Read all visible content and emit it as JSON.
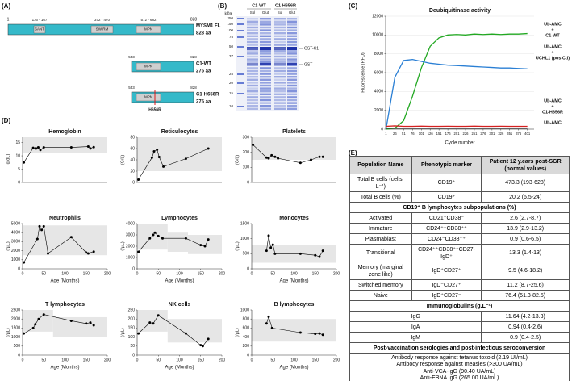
{
  "panel_labels": [
    "(A)",
    "(B)",
    "(C)",
    "(D)",
    "(E)"
  ],
  "diagram": {
    "full": {
      "start": "1",
      "end": "828",
      "name": "MYSM1 FL",
      "length": "828 aa",
      "domains": [
        {
          "name": "SANT",
          "range": "116 - 167"
        },
        {
          "name": "SWIRM",
          "range": "372 - 470"
        },
        {
          "name": "MPN",
          "range": "572 - 682"
        }
      ]
    },
    "constructs": [
      {
        "start": "553",
        "end": "828",
        "domain": "MPN",
        "name": "C1-WT",
        "length": "275 aa",
        "color": "#1a9a1a"
      },
      {
        "start": "553",
        "end": "828",
        "domain": "MPN",
        "name": "C1-H656R",
        "length": "275 aa",
        "color": "#e01818",
        "mutation": "H656R"
      }
    ]
  },
  "gel": {
    "unit": "kDa",
    "markers": [
      250,
      150,
      100,
      75,
      50,
      37,
      25,
      20,
      15,
      10
    ],
    "groups": [
      {
        "name": "C1-WT",
        "color": "#1a9a1a",
        "lanes": [
          "Sol",
          "Glut"
        ]
      },
      {
        "name": "C1-H656R",
        "color": "#e01818",
        "lanes": [
          "Sol",
          "Glut"
        ]
      }
    ],
    "bands": [
      "GST-C1",
      "GST"
    ]
  },
  "chart_data": [
    {
      "type": "line",
      "title": "Deubiquitinase activity",
      "xlabel": "Cycle number",
      "ylabel": "Fluorescence (RFU)",
      "annotation": {
        "substrate": "Ub-AMC",
        "plus": "+"
      },
      "x": [
        1,
        26,
        51,
        76,
        101,
        126,
        151,
        176,
        201,
        226,
        251,
        276,
        301,
        326,
        351,
        376,
        401
      ],
      "xlim": [
        0,
        420
      ],
      "xticks": [
        1,
        26,
        51,
        76,
        101,
        126,
        151,
        176,
        201,
        226,
        251,
        276,
        301,
        326,
        351,
        376,
        401
      ],
      "ylim": [
        0,
        12000
      ],
      "yticks": [
        0,
        2000,
        4000,
        6000,
        8000,
        10000,
        12000
      ],
      "grid": true,
      "series": [
        {
          "name": "C1-WT",
          "color": "#22a822",
          "values": [
            0,
            100,
            900,
            3500,
            6500,
            8800,
            9700,
            10000,
            10050,
            10000,
            10100,
            10050,
            10100,
            10050,
            10100,
            10100,
            10150
          ]
        },
        {
          "name": "UCHL1 (pos Ctl)",
          "color": "#2a7fd4",
          "values": [
            0,
            5500,
            7300,
            7400,
            7200,
            7000,
            6900,
            6800,
            6750,
            6700,
            6650,
            6600,
            6550,
            6500,
            6500,
            6450,
            6400
          ]
        },
        {
          "name": "C1-H656R",
          "color": "#d42020",
          "values": [
            300,
            350,
            300,
            300,
            320,
            300,
            300,
            310,
            300,
            300,
            320,
            300,
            300,
            310,
            300,
            300,
            300
          ]
        },
        {
          "name": "Ub-AMC",
          "color": "#333333",
          "values": [
            100,
            100,
            100,
            100,
            100,
            100,
            100,
            100,
            100,
            100,
            100,
            100,
            100,
            100,
            100,
            100,
            100
          ]
        }
      ]
    },
    {
      "type": "line",
      "title": "Hemoglobin",
      "ylabel": "(g/dL)",
      "color": "#000000",
      "markers": true,
      "x": [
        3,
        25,
        32,
        37,
        42,
        50,
        115,
        155,
        160,
        168
      ],
      "values": [
        7.5,
        13,
        12.8,
        13.2,
        12.2,
        13.2,
        13.2,
        13.5,
        12.8,
        13.3
      ],
      "xlim": [
        0,
        200
      ],
      "ylim": [
        0,
        17
      ],
      "yticks": [
        0,
        5,
        10,
        15
      ],
      "ref_ranges": [
        {
          "x": [
            0,
            200
          ],
          "y": [
            11,
            17
          ]
        }
      ]
    },
    {
      "type": "line",
      "title": "Reticulocytes",
      "ylabel": "(G/L)",
      "color": "#000000",
      "markers": true,
      "x": [
        3,
        35,
        40,
        47,
        52,
        62,
        115,
        168
      ],
      "values": [
        5,
        44,
        55,
        58,
        45,
        28,
        42,
        60
      ],
      "xlim": [
        0,
        200
      ],
      "ylim": [
        0,
        80
      ],
      "yticks": [
        0,
        20,
        40,
        60,
        80
      ],
      "ref_ranges": [
        {
          "x": [
            0,
            200
          ],
          "y": [
            20,
            80
          ]
        }
      ]
    },
    {
      "type": "line",
      "title": "Platelets",
      "ylabel": "(G/L)",
      "color": "#000000",
      "markers": true,
      "x": [
        3,
        35,
        40,
        47,
        55,
        62,
        115,
        140,
        160,
        168
      ],
      "values": [
        250,
        165,
        160,
        180,
        170,
        160,
        130,
        150,
        170,
        170
      ],
      "xlim": [
        0,
        200
      ],
      "ylim": [
        0,
        300
      ],
      "yticks": [
        0,
        100,
        200,
        300
      ],
      "ref_ranges": [
        {
          "x": [
            0,
            200
          ],
          "y": [
            150,
            300
          ]
        }
      ]
    },
    {
      "type": "line",
      "title": "Neutrophils",
      "ylabel": "(/µL)",
      "xlabel": "Age (Months)",
      "color": "#000000",
      "markers": true,
      "x": [
        3,
        35,
        40,
        45,
        50,
        60,
        115,
        150,
        155,
        168
      ],
      "values": [
        700,
        3300,
        4700,
        4300,
        4700,
        1700,
        3500,
        1800,
        1700,
        1900
      ],
      "xlim": [
        0,
        200
      ],
      "xticks": [
        0,
        50,
        100,
        150,
        200
      ],
      "ylim": [
        0,
        5000
      ],
      "yticks": [
        0,
        1000,
        2000,
        3000,
        4000,
        5000
      ],
      "ref_ranges": [
        {
          "x": [
            0,
            200
          ],
          "y": [
            1500,
            4800
          ]
        }
      ]
    },
    {
      "type": "line",
      "title": "Lymphocytes",
      "ylabel": "(/µL)",
      "xlabel": "Age (Months)",
      "color": "#000000",
      "markers": true,
      "x": [
        3,
        30,
        38,
        42,
        50,
        60,
        115,
        150,
        160,
        168
      ],
      "values": [
        1500,
        2700,
        3000,
        3200,
        2900,
        2700,
        2700,
        2100,
        2000,
        2600
      ],
      "xlim": [
        0,
        200
      ],
      "xticks": [
        0,
        50,
        100,
        150,
        200
      ],
      "ylim": [
        0,
        4000
      ],
      "yticks": [
        0,
        1000,
        2000,
        3000,
        4000
      ],
      "ref_ranges": [
        {
          "x": [
            0,
            72
          ],
          "y": [
            1700,
            4000
          ]
        },
        {
          "x": [
            72,
            120
          ],
          "y": [
            1500,
            3200
          ]
        },
        {
          "x": [
            120,
            200
          ],
          "y": [
            1300,
            3000
          ]
        }
      ]
    },
    {
      "type": "line",
      "title": "Monocytes",
      "ylabel": "(/µL)",
      "xlabel": "Age (Months)",
      "color": "#000000",
      "markers": true,
      "x": [
        35,
        40,
        45,
        50,
        55,
        115,
        150,
        160,
        168
      ],
      "values": [
        600,
        1100,
        700,
        800,
        500,
        500,
        450,
        400,
        600
      ],
      "xlim": [
        0,
        200
      ],
      "xticks": [
        0,
        50,
        100,
        150,
        200
      ],
      "ylim": [
        0,
        1500
      ],
      "yticks": [
        0,
        500,
        1000,
        1500
      ],
      "ref_ranges": [
        {
          "x": [
            0,
            200
          ],
          "y": [
            200,
            800
          ]
        }
      ]
    },
    {
      "type": "line",
      "title": "T lymphocytes",
      "ylabel": "(/µL)",
      "xlabel": "Age (Months)",
      "color": "#000000",
      "markers": true,
      "x": [
        3,
        25,
        30,
        38,
        50,
        115,
        150,
        160,
        168
      ],
      "values": [
        1200,
        1500,
        1700,
        2000,
        2250,
        1900,
        1750,
        1800,
        1650
      ],
      "xlim": [
        0,
        200
      ],
      "xticks": [
        0,
        50,
        100,
        150,
        200
      ],
      "ylim": [
        0,
        2500
      ],
      "yticks": [
        0,
        500,
        1000,
        1500,
        2000,
        2500
      ],
      "ref_ranges": [
        {
          "x": [
            0,
            72
          ],
          "y": [
            1300,
            2500
          ]
        },
        {
          "x": [
            72,
            200
          ],
          "y": [
            1000,
            2100
          ]
        }
      ]
    },
    {
      "type": "line",
      "title": "NK cells",
      "ylabel": "(/µL)",
      "xlabel": "Age (Months)",
      "color": "#000000",
      "markers": true,
      "x": [
        3,
        30,
        38,
        50,
        115,
        150,
        155,
        168
      ],
      "values": [
        120,
        180,
        175,
        220,
        120,
        55,
        50,
        90
      ],
      "xlim": [
        0,
        200
      ],
      "xticks": [
        0,
        50,
        100,
        150,
        200
      ],
      "ylim": [
        0,
        250
      ],
      "yticks": [
        0,
        50,
        100,
        150,
        200,
        250
      ],
      "ref_ranges": [
        {
          "x": [
            0,
            72
          ],
          "y": [
            130,
            250
          ]
        },
        {
          "x": [
            72,
            200
          ],
          "y": [
            70,
            200
          ]
        }
      ]
    },
    {
      "type": "line",
      "title": "B lymphocytes",
      "ylabel": "(/µL)",
      "xlabel": "Age (Months)",
      "color": "#000000",
      "markers": true,
      "x": [
        35,
        40,
        48,
        115,
        150,
        160,
        168
      ],
      "values": [
        700,
        850,
        600,
        500,
        470,
        480,
        450
      ],
      "xlim": [
        0,
        200
      ],
      "xticks": [
        0,
        50,
        100,
        150,
        200
      ],
      "ylim": [
        0,
        1000
      ],
      "yticks": [
        0,
        200,
        400,
        600,
        800,
        1000
      ],
      "ref_ranges": [
        {
          "x": [
            0,
            200
          ],
          "y": [
            300,
            800
          ]
        }
      ]
    }
  ],
  "table": {
    "header": [
      "Population Name",
      "Phenotypic marker",
      "Patient 12 y.ears post-SGR (normal values)"
    ],
    "sections": [
      {
        "rows": [
          [
            "Total B cells (cells. L⁻¹)",
            "CD19⁺",
            "473.3 (193-628)"
          ],
          [
            "Total B cells (%)",
            "CD19⁺",
            "20.2 (6.5-24)"
          ]
        ]
      },
      {
        "title": "CD19⁺ B lymphocytes subpopulations (%)",
        "rows": [
          [
            "Activated",
            "CD21⁻CD38⁻",
            "2.6 (2.7-8.7)"
          ],
          [
            "Immature",
            "CD24⁺⁺CD38⁺⁺",
            "13.9 (2.9-13.2)"
          ],
          [
            "Plasmablast",
            "CD24⁻CD38⁺⁺",
            "0.9 (0.6-6.5)"
          ],
          [
            "Transitional",
            "CD24⁺⁺CD38⁺⁺CD27- IgD⁺",
            "13.3 (1.4-13)"
          ],
          [
            "Memory (marginal zone like)",
            "IgD⁺CD27⁺",
            "9.5 (4.6-18.2)"
          ],
          [
            "Switched memory",
            "IgD⁻CD27⁺",
            "11.2 (8.7-25.6)"
          ],
          [
            "Naive",
            "IgD⁺CD27⁻",
            "76.4 (51.3-82.5)"
          ]
        ]
      },
      {
        "title": "Immunoglobulins (g.L⁻¹)",
        "rows": [
          [
            "IgG",
            "11.64 (4.2-13.3)"
          ],
          [
            "IgA",
            "0.94 (0.4-2.6)"
          ],
          [
            "IgM",
            "0.9 (0.4-2.5)"
          ]
        ]
      },
      {
        "title": "Post-vaccination serologies and post-infectious seroconversion",
        "lines": [
          "Antibody response against tetanus toxoid (2.19 UI/mL)",
          "Antibody response against measles (>300 UA/mL)",
          "Anti-VCA-IgG (90.40 UA/mL)",
          "Anti-EBNA IgG (265.00 UA/mL)"
        ]
      }
    ]
  }
}
